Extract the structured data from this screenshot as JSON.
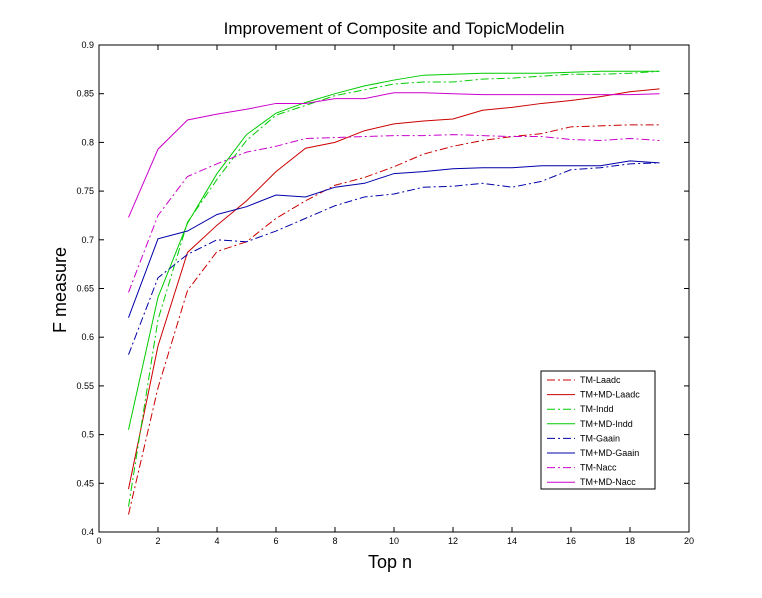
{
  "chart_data": {
    "type": "line",
    "title": "Improvement of Composite and TopicModelin",
    "xlabel": "Top n",
    "ylabel": "F measure",
    "xlim": [
      0,
      20
    ],
    "ylim": [
      0.4,
      0.9
    ],
    "xticks": [
      "0",
      "2",
      "4",
      "6",
      "8",
      "10",
      "12",
      "14",
      "16",
      "18",
      "20"
    ],
    "yticks": [
      "0.4",
      "0.45",
      "0.5",
      "0.55",
      "0.6",
      "0.65",
      "0.7",
      "0.75",
      "0.8",
      "0.85",
      "0.9"
    ],
    "grid": false,
    "legend_position": "lower-right",
    "x": [
      1,
      2,
      3,
      4,
      5,
      6,
      7,
      8,
      9,
      10,
      11,
      12,
      13,
      14,
      15,
      16,
      17,
      18,
      19
    ],
    "series": [
      {
        "name": "TM-Laadc",
        "color": "#cc0000",
        "dash": "dashdot",
        "values": [
          0.418,
          0.548,
          0.648,
          0.688,
          0.698,
          0.722,
          0.74,
          0.756,
          0.764,
          0.775,
          0.788,
          0.796,
          0.802,
          0.806,
          0.809,
          0.816,
          0.817,
          0.818,
          0.818
        ]
      },
      {
        "name": "TM+MD-Laadc",
        "color": "#cc0000",
        "dash": "solid",
        "values": [
          0.444,
          0.591,
          0.687,
          0.715,
          0.74,
          0.77,
          0.794,
          0.8,
          0.812,
          0.819,
          0.822,
          0.824,
          0.833,
          0.836,
          0.84,
          0.843,
          0.847,
          0.852,
          0.855
        ]
      },
      {
        "name": "TM-Indd",
        "color": "#00cc00",
        "dash": "dashdot",
        "values": [
          0.426,
          0.618,
          0.718,
          0.762,
          0.802,
          0.828,
          0.838,
          0.848,
          0.854,
          0.86,
          0.862,
          0.862,
          0.865,
          0.866,
          0.868,
          0.87,
          0.87,
          0.871,
          0.873
        ]
      },
      {
        "name": "TM+MD-Indd",
        "color": "#00cc00",
        "dash": "solid",
        "values": [
          0.505,
          0.641,
          0.717,
          0.768,
          0.808,
          0.83,
          0.841,
          0.85,
          0.858,
          0.864,
          0.869,
          0.87,
          0.871,
          0.871,
          0.871,
          0.872,
          0.873,
          0.873,
          0.873
        ]
      },
      {
        "name": "TM-Gaain",
        "color": "#0000aa",
        "dash": "dashdot",
        "values": [
          0.582,
          0.661,
          0.685,
          0.7,
          0.698,
          0.709,
          0.722,
          0.735,
          0.744,
          0.747,
          0.754,
          0.755,
          0.758,
          0.754,
          0.76,
          0.772,
          0.774,
          0.778,
          0.779
        ]
      },
      {
        "name": "TM+MD-Gaain",
        "color": "#0000aa",
        "dash": "solid",
        "values": [
          0.62,
          0.701,
          0.709,
          0.726,
          0.734,
          0.746,
          0.744,
          0.754,
          0.758,
          0.768,
          0.77,
          0.773,
          0.774,
          0.774,
          0.776,
          0.776,
          0.776,
          0.781,
          0.779
        ]
      },
      {
        "name": "TM-Nacc",
        "color": "#cc00cc",
        "dash": "dashdot",
        "values": [
          0.646,
          0.725,
          0.765,
          0.778,
          0.79,
          0.796,
          0.804,
          0.805,
          0.806,
          0.807,
          0.807,
          0.808,
          0.807,
          0.806,
          0.806,
          0.803,
          0.802,
          0.804,
          0.802
        ]
      },
      {
        "name": "TM+MD-Nacc",
        "color": "#cc00cc",
        "dash": "solid",
        "values": [
          0.723,
          0.793,
          0.823,
          0.829,
          0.834,
          0.84,
          0.84,
          0.845,
          0.845,
          0.851,
          0.851,
          0.85,
          0.849,
          0.849,
          0.849,
          0.849,
          0.849,
          0.849,
          0.85
        ]
      }
    ]
  }
}
